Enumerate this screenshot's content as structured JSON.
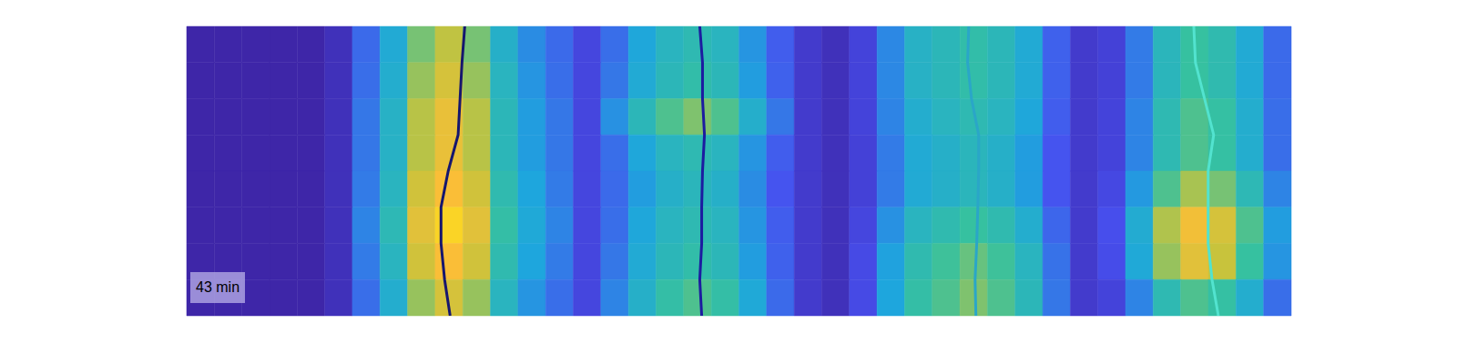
{
  "chart_data": {
    "type": "heatmap",
    "tick_labels": false,
    "xlim": [
      0,
      40
    ],
    "ylim": [
      0,
      8
    ],
    "color_range": [
      0,
      1
    ],
    "annotation": "43 min",
    "cells": [
      [
        0,
        0,
        0,
        0,
        0,
        0.05,
        0.26,
        0.43,
        0.68,
        0.77,
        0.68,
        0.47,
        0.34,
        0.26,
        0.15,
        0.27,
        0.41,
        0.5,
        0.54,
        0.5,
        0.36,
        0.23,
        0.1,
        0.05,
        0.14,
        0.33,
        0.48,
        0.52,
        0.57,
        0.52,
        0.43,
        0.24,
        0.1,
        0.13,
        0.3,
        0.51,
        0.6,
        0.55,
        0.43,
        0.26
      ],
      [
        0,
        0,
        0,
        0,
        0,
        0.05,
        0.27,
        0.45,
        0.72,
        0.81,
        0.72,
        0.5,
        0.36,
        0.27,
        0.15,
        0.29,
        0.43,
        0.52,
        0.57,
        0.52,
        0.38,
        0.24,
        0.1,
        0.05,
        0.14,
        0.33,
        0.48,
        0.52,
        0.57,
        0.52,
        0.43,
        0.24,
        0.1,
        0.13,
        0.3,
        0.51,
        0.6,
        0.55,
        0.43,
        0.26
      ],
      [
        0,
        0,
        0,
        0,
        0,
        0.05,
        0.29,
        0.48,
        0.76,
        0.86,
        0.76,
        0.52,
        0.38,
        0.29,
        0.15,
        0.35,
        0.52,
        0.63,
        0.69,
        0.63,
        0.46,
        0.29,
        0.1,
        0.05,
        0.14,
        0.32,
        0.45,
        0.5,
        0.54,
        0.5,
        0.41,
        0.23,
        0.1,
        0.14,
        0.32,
        0.54,
        0.63,
        0.59,
        0.45,
        0.27
      ],
      [
        0,
        0,
        0,
        0,
        0,
        0.05,
        0.29,
        0.48,
        0.76,
        0.86,
        0.76,
        0.52,
        0.38,
        0.29,
        0.15,
        0.27,
        0.41,
        0.5,
        0.54,
        0.5,
        0.36,
        0.23,
        0.1,
        0.05,
        0.13,
        0.3,
        0.43,
        0.47,
        0.51,
        0.47,
        0.38,
        0.21,
        0.1,
        0.14,
        0.32,
        0.54,
        0.63,
        0.59,
        0.45,
        0.27
      ],
      [
        0,
        0,
        0,
        0,
        0,
        0.05,
        0.3,
        0.5,
        0.8,
        0.9,
        0.8,
        0.55,
        0.4,
        0.3,
        0.15,
        0.26,
        0.38,
        0.47,
        0.51,
        0.47,
        0.34,
        0.21,
        0.1,
        0.05,
        0.13,
        0.3,
        0.43,
        0.47,
        0.51,
        0.47,
        0.38,
        0.21,
        0.1,
        0.16,
        0.37,
        0.63,
        0.74,
        0.68,
        0.53,
        0.32
      ],
      [
        0,
        0,
        0,
        0,
        0,
        0.05,
        0.32,
        0.53,
        0.84,
        0.95,
        0.84,
        0.58,
        0.42,
        0.32,
        0.15,
        0.27,
        0.41,
        0.5,
        0.54,
        0.5,
        0.36,
        0.23,
        0.1,
        0.05,
        0.15,
        0.35,
        0.5,
        0.55,
        0.6,
        0.55,
        0.45,
        0.25,
        0.1,
        0.19,
        0.44,
        0.75,
        0.88,
        0.81,
        0.63,
        0.38
      ],
      [
        0,
        0,
        0,
        0,
        0,
        0.05,
        0.3,
        0.5,
        0.8,
        0.9,
        0.8,
        0.55,
        0.4,
        0.3,
        0.15,
        0.29,
        0.43,
        0.52,
        0.57,
        0.52,
        0.38,
        0.24,
        0.1,
        0.05,
        0.17,
        0.39,
        0.55,
        0.61,
        0.66,
        0.61,
        0.5,
        0.28,
        0.1,
        0.18,
        0.42,
        0.72,
        0.84,
        0.78,
        0.6,
        0.36
      ],
      [
        0,
        0,
        0,
        0,
        0,
        0.05,
        0.27,
        0.45,
        0.72,
        0.81,
        0.72,
        0.5,
        0.36,
        0.27,
        0.15,
        0.32,
        0.47,
        0.58,
        0.63,
        0.58,
        0.42,
        0.26,
        0.1,
        0.05,
        0.17,
        0.4,
        0.58,
        0.63,
        0.69,
        0.63,
        0.52,
        0.29,
        0.1,
        0.14,
        0.32,
        0.54,
        0.63,
        0.59,
        0.45,
        0.27
      ]
    ],
    "series": [
      {
        "type": "line",
        "color": "#16166e",
        "x": [
          10.07,
          9.97,
          9.9,
          9.83,
          9.47,
          9.21,
          9.21,
          9.34,
          9.54
        ],
        "y": [
          0,
          1,
          2,
          3,
          4,
          5,
          6,
          7,
          8
        ]
      },
      {
        "type": "line",
        "color": "#1c1ca0",
        "x": [
          18.58,
          18.68,
          18.68,
          18.75,
          18.68,
          18.65,
          18.65,
          18.58,
          18.65
        ],
        "y": [
          0,
          1,
          2,
          3,
          4,
          5,
          6,
          7,
          8
        ]
      },
      {
        "type": "line",
        "color": "#2aa6c8",
        "x": [
          28.32,
          28.28,
          28.42,
          28.68,
          28.68,
          28.65,
          28.61,
          28.55,
          28.58
        ],
        "y": [
          0,
          1,
          2,
          3,
          4,
          5,
          6,
          7,
          8
        ]
      },
      {
        "type": "line",
        "color": "#52e3cf",
        "x": [
          36.47,
          36.53,
          36.86,
          37.19,
          36.99,
          36.99,
          36.99,
          37.13,
          37.36
        ],
        "y": [
          0,
          1,
          2,
          3,
          4,
          5,
          6,
          7,
          8
        ]
      }
    ]
  }
}
